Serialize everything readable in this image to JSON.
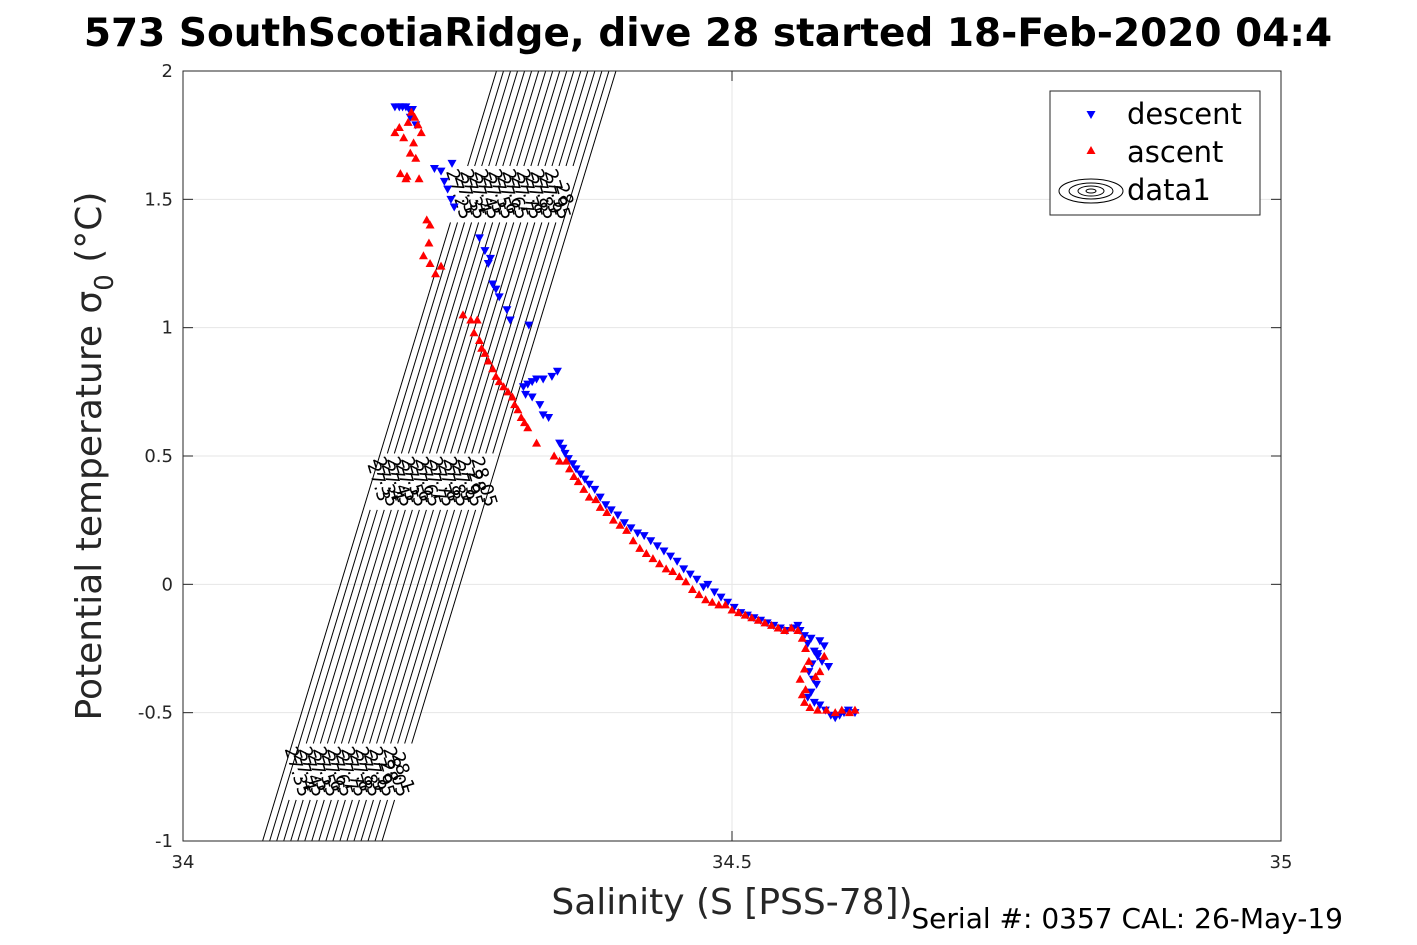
{
  "chart_data": {
    "type": "scatter",
    "title": "573 SouthScotiaRidge, dive 28 started 18-Feb-2020 04:4",
    "xlabel": "Salinity (S [PSS-78])",
    "ylabel_main": "Potential temperature σ",
    "ylabel_sub": "0",
    "ylabel_unit": " (°C)",
    "xlim": [
      34,
      35
    ],
    "ylim": [
      -1,
      2
    ],
    "x_ticks": [
      34,
      34.5,
      35
    ],
    "x_tick_labels": [
      "34",
      "34.5",
      "35"
    ],
    "y_ticks": [
      -1,
      -0.5,
      0,
      0.5,
      1,
      1.5,
      2
    ],
    "y_tick_labels": [
      "-1",
      "-0.5",
      "0",
      "0.5",
      "1",
      "1.5",
      "2"
    ],
    "grid": true,
    "legend_position": "top-right",
    "legend": [
      "descent",
      "ascent",
      "data1"
    ],
    "footer": "Serial #: 0357  CAL: 26-May-19",
    "isopycnals": {
      "values": [
        27.25,
        27.3,
        27.35,
        27.4,
        27.45,
        27.5,
        27.55,
        27.6,
        27.65,
        27.7,
        27.75,
        27.8,
        27.85,
        27.9,
        27.95,
        28,
        28.05,
        28.1
      ],
      "label_rows": [
        {
          "theta": 1.52,
          "labels": [
            "27.25",
            "27.3",
            "27.35",
            "27.4",
            "27.45",
            "27.5",
            "27.55",
            "27.6",
            "27.65",
            "27.7",
            "27.75",
            "27.8",
            "27.85",
            "27.9",
            "27.95",
            "28"
          ]
        },
        {
          "theta": 0.4,
          "labels": [
            "27.3",
            "27.35",
            "27.4",
            "27.45",
            "27.5",
            "27.55",
            "27.6",
            "27.65",
            "27.7",
            "27.75",
            "27.8",
            "27.85",
            "27.9",
            "27.95",
            "28",
            "28.05"
          ]
        },
        {
          "theta": -0.73,
          "labels": [
            "27.35",
            "27.4",
            "27.45",
            "27.5",
            "27.55",
            "27.6",
            "27.65",
            "27.7",
            "27.75",
            "27.8",
            "27.85",
            "27.9",
            "27.95",
            "28",
            "28.05",
            "28.1"
          ]
        }
      ]
    },
    "series": [
      {
        "name": "descent",
        "color": "#0000ff",
        "marker": "triangle-down",
        "points": [
          [
            34.193,
            1.86
          ],
          [
            34.197,
            1.86
          ],
          [
            34.2,
            1.86
          ],
          [
            34.203,
            1.86
          ],
          [
            34.206,
            1.85
          ],
          [
            34.209,
            1.85
          ],
          [
            34.207,
            1.82
          ],
          [
            34.212,
            1.79
          ],
          [
            34.229,
            1.62
          ],
          [
            34.235,
            1.61
          ],
          [
            34.238,
            1.57
          ],
          [
            34.241,
            1.54
          ],
          [
            34.244,
            1.5
          ],
          [
            34.247,
            1.47
          ],
          [
            34.245,
            1.64
          ],
          [
            34.27,
            1.35
          ],
          [
            34.275,
            1.3
          ],
          [
            34.28,
            1.27
          ],
          [
            34.278,
            1.25
          ],
          [
            34.282,
            1.17
          ],
          [
            34.285,
            1.15
          ],
          [
            34.288,
            1.12
          ],
          [
            34.295,
            1.07
          ],
          [
            34.298,
            1.03
          ],
          [
            34.315,
            1.01
          ],
          [
            34.31,
            0.77
          ],
          [
            34.314,
            0.78
          ],
          [
            34.318,
            0.79
          ],
          [
            34.322,
            0.8
          ],
          [
            34.328,
            0.8
          ],
          [
            34.336,
            0.81
          ],
          [
            34.341,
            0.83
          ],
          [
            34.312,
            0.74
          ],
          [
            34.318,
            0.73
          ],
          [
            34.325,
            0.7
          ],
          [
            34.328,
            0.66
          ],
          [
            34.333,
            0.65
          ],
          [
            34.343,
            0.55
          ],
          [
            34.346,
            0.53
          ],
          [
            34.348,
            0.51
          ],
          [
            34.351,
            0.49
          ],
          [
            34.355,
            0.47
          ],
          [
            34.358,
            0.45
          ],
          [
            34.362,
            0.43
          ],
          [
            34.366,
            0.41
          ],
          [
            34.37,
            0.39
          ],
          [
            34.375,
            0.37
          ],
          [
            34.38,
            0.34
          ],
          [
            34.385,
            0.31
          ],
          [
            34.39,
            0.29
          ],
          [
            34.396,
            0.27
          ],
          [
            34.402,
            0.24
          ],
          [
            34.408,
            0.22
          ],
          [
            34.414,
            0.2
          ],
          [
            34.42,
            0.19
          ],
          [
            34.426,
            0.17
          ],
          [
            34.432,
            0.15
          ],
          [
            34.438,
            0.13
          ],
          [
            34.444,
            0.11
          ],
          [
            34.45,
            0.09
          ],
          [
            34.456,
            0.06
          ],
          [
            34.462,
            0.04
          ],
          [
            34.468,
            0.02
          ],
          [
            34.474,
            -0.01
          ],
          [
            34.478,
            0.0
          ],
          [
            34.484,
            -0.03
          ],
          [
            34.49,
            -0.05
          ],
          [
            34.496,
            -0.07
          ],
          [
            34.502,
            -0.09
          ],
          [
            34.508,
            -0.11
          ],
          [
            34.514,
            -0.12
          ],
          [
            34.52,
            -0.13
          ],
          [
            34.526,
            -0.14
          ],
          [
            34.532,
            -0.15
          ],
          [
            34.538,
            -0.16
          ],
          [
            34.544,
            -0.17
          ],
          [
            34.55,
            -0.18
          ],
          [
            34.556,
            -0.17
          ],
          [
            34.562,
            -0.18
          ],
          [
            34.566,
            -0.2
          ],
          [
            34.569,
            -0.23
          ],
          [
            34.572,
            -0.21
          ],
          [
            34.575,
            -0.26
          ],
          [
            34.578,
            -0.28
          ],
          [
            34.573,
            -0.31
          ],
          [
            34.57,
            -0.34
          ],
          [
            34.574,
            -0.37
          ],
          [
            34.577,
            -0.39
          ],
          [
            34.572,
            -0.42
          ],
          [
            34.569,
            -0.44
          ],
          [
            34.575,
            -0.46
          ],
          [
            34.58,
            -0.47
          ],
          [
            34.585,
            -0.49
          ],
          [
            34.59,
            -0.51
          ],
          [
            34.594,
            -0.52
          ],
          [
            34.598,
            -0.51
          ],
          [
            34.602,
            -0.5
          ],
          [
            34.606,
            -0.49
          ],
          [
            34.612,
            -0.5
          ],
          [
            34.588,
            -0.32
          ],
          [
            34.582,
            -0.3
          ],
          [
            34.578,
            -0.27
          ],
          [
            34.584,
            -0.24
          ],
          [
            34.58,
            -0.22
          ],
          [
            34.56,
            -0.16
          ]
        ]
      },
      {
        "name": "ascent",
        "color": "#ff0000",
        "marker": "triangle-up",
        "points": [
          [
            34.193,
            1.76
          ],
          [
            34.197,
            1.78
          ],
          [
            34.201,
            1.74
          ],
          [
            34.205,
            1.8
          ],
          [
            34.208,
            1.84
          ],
          [
            34.211,
            1.82
          ],
          [
            34.214,
            1.79
          ],
          [
            34.217,
            1.76
          ],
          [
            34.21,
            1.72
          ],
          [
            34.207,
            1.68
          ],
          [
            34.212,
            1.66
          ],
          [
            34.198,
            1.6
          ],
          [
            34.203,
            1.58
          ],
          [
            34.204,
            1.59
          ],
          [
            34.215,
            1.58
          ],
          [
            34.222,
            1.42
          ],
          [
            34.225,
            1.4
          ],
          [
            34.224,
            1.33
          ],
          [
            34.219,
            1.28
          ],
          [
            34.225,
            1.25
          ],
          [
            34.23,
            1.21
          ],
          [
            34.235,
            1.24
          ],
          [
            34.255,
            1.05
          ],
          [
            34.262,
            1.03
          ],
          [
            34.265,
            0.98
          ],
          [
            34.27,
            0.95
          ],
          [
            34.268,
            1.03
          ],
          [
            34.272,
            0.92
          ],
          [
            34.275,
            0.9
          ],
          [
            34.278,
            0.87
          ],
          [
            34.282,
            0.84
          ],
          [
            34.285,
            0.81
          ],
          [
            34.288,
            0.79
          ],
          [
            34.292,
            0.77
          ],
          [
            34.296,
            0.75
          ],
          [
            34.3,
            0.73
          ],
          [
            34.302,
            0.7
          ],
          [
            34.305,
            0.68
          ],
          [
            34.308,
            0.65
          ],
          [
            34.311,
            0.63
          ],
          [
            34.314,
            0.61
          ],
          [
            34.322,
            0.55
          ],
          [
            34.338,
            0.5
          ],
          [
            34.343,
            0.48
          ],
          [
            34.349,
            0.48
          ],
          [
            34.352,
            0.45
          ],
          [
            34.356,
            0.42
          ],
          [
            34.36,
            0.4
          ],
          [
            34.365,
            0.37
          ],
          [
            34.37,
            0.34
          ],
          [
            34.376,
            0.33
          ],
          [
            34.38,
            0.3
          ],
          [
            34.386,
            0.28
          ],
          [
            34.392,
            0.25
          ],
          [
            34.398,
            0.23
          ],
          [
            34.404,
            0.21
          ],
          [
            34.41,
            0.17
          ],
          [
            34.416,
            0.14
          ],
          [
            34.422,
            0.12
          ],
          [
            34.428,
            0.1
          ],
          [
            34.434,
            0.08
          ],
          [
            34.44,
            0.06
          ],
          [
            34.446,
            0.05
          ],
          [
            34.452,
            0.03
          ],
          [
            34.458,
            0.01
          ],
          [
            34.464,
            -0.02
          ],
          [
            34.47,
            -0.04
          ],
          [
            34.476,
            -0.06
          ],
          [
            34.482,
            -0.07
          ],
          [
            34.488,
            -0.08
          ],
          [
            34.494,
            -0.08
          ],
          [
            34.5,
            -0.1
          ],
          [
            34.506,
            -0.11
          ],
          [
            34.512,
            -0.12
          ],
          [
            34.518,
            -0.13
          ],
          [
            34.524,
            -0.14
          ],
          [
            34.53,
            -0.15
          ],
          [
            34.536,
            -0.16
          ],
          [
            34.542,
            -0.17
          ],
          [
            34.548,
            -0.18
          ],
          [
            34.554,
            -0.17
          ],
          [
            34.56,
            -0.18
          ],
          [
            34.564,
            -0.21
          ],
          [
            34.567,
            -0.25
          ],
          [
            34.57,
            -0.3
          ],
          [
            34.566,
            -0.33
          ],
          [
            34.562,
            -0.37
          ],
          [
            34.567,
            -0.41
          ],
          [
            34.564,
            -0.43
          ],
          [
            34.566,
            -0.46
          ],
          [
            34.571,
            -0.48
          ],
          [
            34.578,
            -0.49
          ],
          [
            34.586,
            -0.49
          ],
          [
            34.594,
            -0.5
          ],
          [
            34.6,
            -0.49
          ],
          [
            34.607,
            -0.5
          ],
          [
            34.612,
            -0.49
          ],
          [
            34.576,
            -0.36
          ],
          [
            34.58,
            -0.34
          ],
          [
            34.584,
            -0.28
          ]
        ]
      }
    ]
  }
}
